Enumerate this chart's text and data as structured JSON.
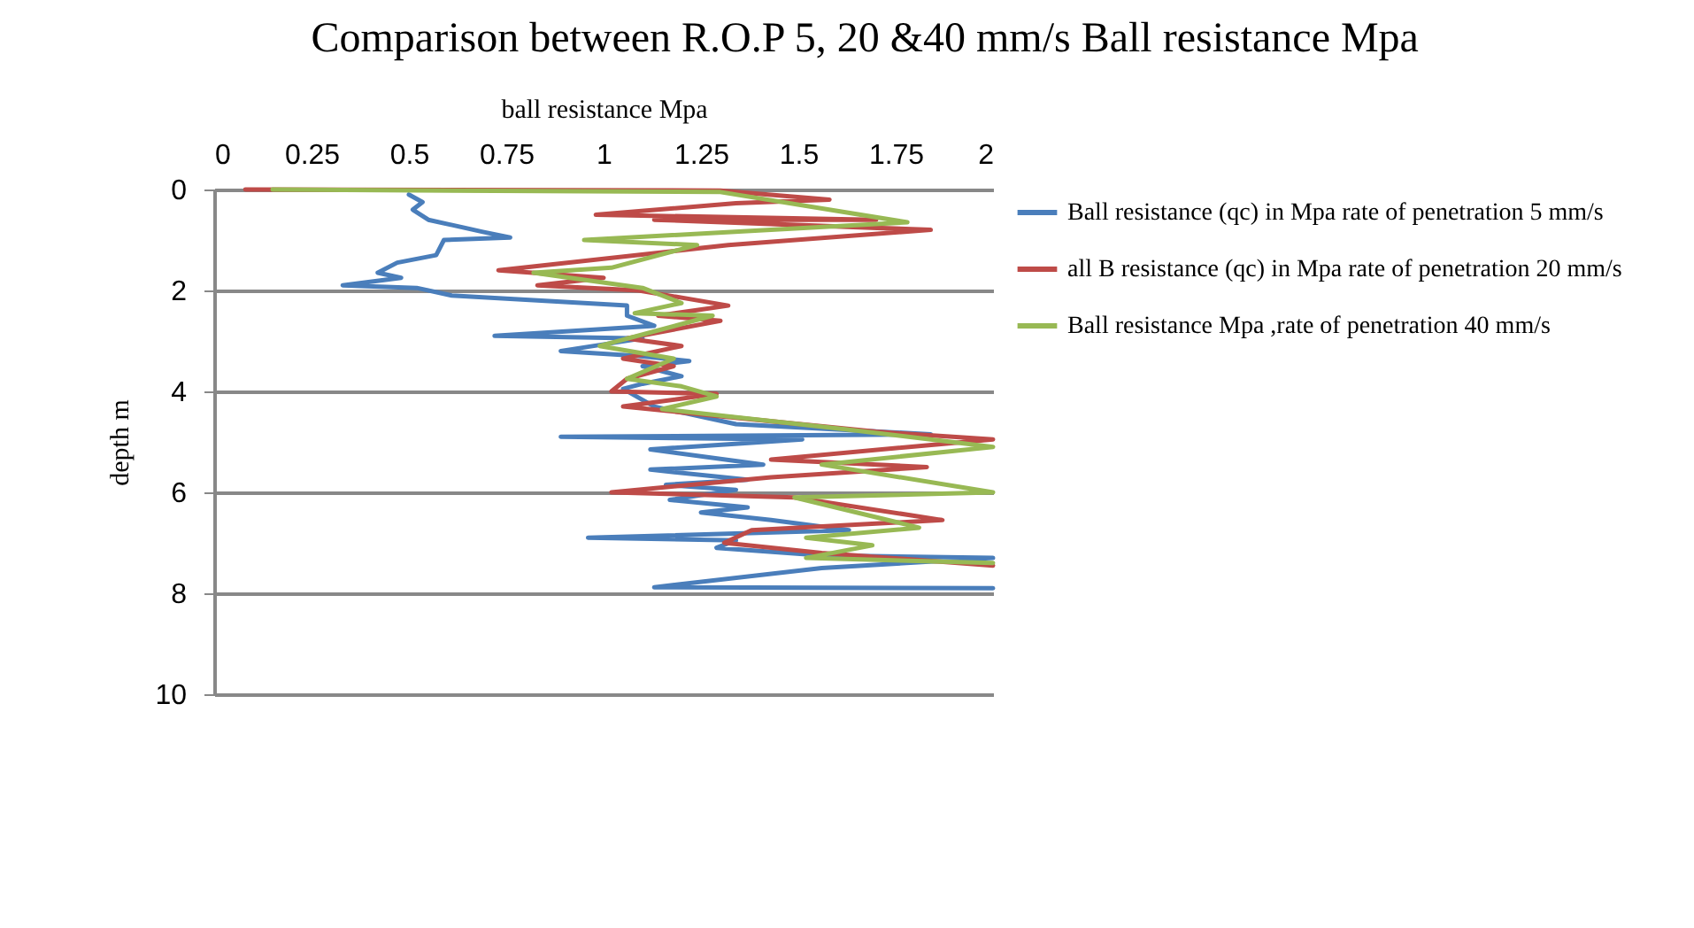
{
  "chart_data": {
    "type": "line",
    "title": "Comparison between R.O.P 5, 20 &40 mm/s Ball resistance Mpa",
    "xlabel": "ball resistance Mpa",
    "ylabel": "depth m",
    "xlim": [
      0,
      2
    ],
    "xticks": [
      0,
      0.25,
      0.5,
      0.75,
      1,
      1.25,
      1.5,
      1.75,
      2
    ],
    "ylim": [
      10,
      0
    ],
    "yticks": [
      0,
      2,
      4,
      6,
      8,
      10
    ],
    "grid": "y",
    "legend": "right",
    "series": [
      {
        "name": "Ball  resistance (qc) in Mpa rate of penetration 5 mm/s",
        "color": "#4a7ebb",
        "x": [
          0.5,
          0.535,
          0.51,
          0.55,
          0.69,
          0.76,
          0.59,
          0.57,
          0.47,
          0.42,
          0.48,
          0.33,
          0.52,
          0.61,
          1.06,
          1.06,
          1.13,
          0.72,
          1.1,
          0.89,
          1.09,
          1.22,
          1.1,
          1.2,
          1.1,
          1.05,
          1.13,
          1.34,
          1.84,
          0.89,
          1.51,
          1.12,
          1.41,
          1.12,
          1.37,
          1.16,
          1.34,
          1.17,
          1.37,
          1.25,
          1.43,
          1.63,
          0.96,
          1.34,
          1.29,
          1.56,
          2.0,
          1.56,
          1.13,
          2.0
        ],
        "values": [
          0.1,
          0.25,
          0.4,
          0.6,
          0.84,
          0.95,
          1.0,
          1.3,
          1.45,
          1.65,
          1.75,
          1.9,
          1.95,
          2.1,
          2.3,
          2.5,
          2.7,
          2.9,
          2.95,
          3.2,
          3.3,
          3.4,
          3.5,
          3.7,
          3.85,
          3.95,
          4.3,
          4.65,
          4.85,
          4.9,
          4.95,
          5.15,
          5.45,
          5.55,
          5.75,
          5.85,
          5.95,
          6.15,
          6.3,
          6.4,
          6.55,
          6.75,
          6.9,
          6.95,
          7.1,
          7.25,
          7.3,
          7.5,
          7.88,
          7.9
        ]
      },
      {
        "name": "all B resistance (qc) in Mpa rate of penetration 20 mm/s",
        "color": "#be4b48",
        "x": [
          0.08,
          1.3,
          1.58,
          1.34,
          0.98,
          1.7,
          1.13,
          1.84,
          1.32,
          0.73,
          1.0,
          0.83,
          1.09,
          1.32,
          1.14,
          1.3,
          1.06,
          1.2,
          1.05,
          1.18,
          1.06,
          1.02,
          1.29,
          1.05,
          1.7,
          2.0,
          1.43,
          1.83,
          1.43,
          1.02,
          1.49,
          1.87,
          1.38,
          1.31,
          1.56,
          2.0
        ],
        "values": [
          0,
          0.02,
          0.2,
          0.27,
          0.5,
          0.6,
          0.6,
          0.8,
          1.1,
          1.6,
          1.75,
          1.9,
          2.0,
          2.3,
          2.5,
          2.6,
          2.95,
          3.1,
          3.35,
          3.5,
          3.75,
          4.0,
          4.05,
          4.3,
          4.8,
          4.95,
          5.35,
          5.5,
          5.7,
          6.0,
          6.1,
          6.55,
          6.75,
          7.0,
          7.2,
          7.45
        ]
      },
      {
        "name": "Ball resistance Mpa ,rate of penetration 40 mm/s",
        "color": "#98b954",
        "x": [
          0.15,
          1.3,
          1.78,
          0.95,
          1.24,
          1.02,
          0.82,
          1.1,
          1.2,
          1.08,
          1.28,
          0.99,
          1.18,
          1.06,
          1.2,
          1.29,
          1.15,
          1.62,
          2.0,
          1.56,
          2.0,
          1.49,
          1.81,
          1.52,
          1.69,
          1.52,
          2.0
        ],
        "values": [
          0,
          0.05,
          0.65,
          1.0,
          1.1,
          1.55,
          1.65,
          1.95,
          2.25,
          2.45,
          2.5,
          3.1,
          3.35,
          3.75,
          3.9,
          4.1,
          4.35,
          4.75,
          5.1,
          5.45,
          6.0,
          6.1,
          6.7,
          6.9,
          7.05,
          7.3,
          7.4
        ]
      }
    ]
  }
}
